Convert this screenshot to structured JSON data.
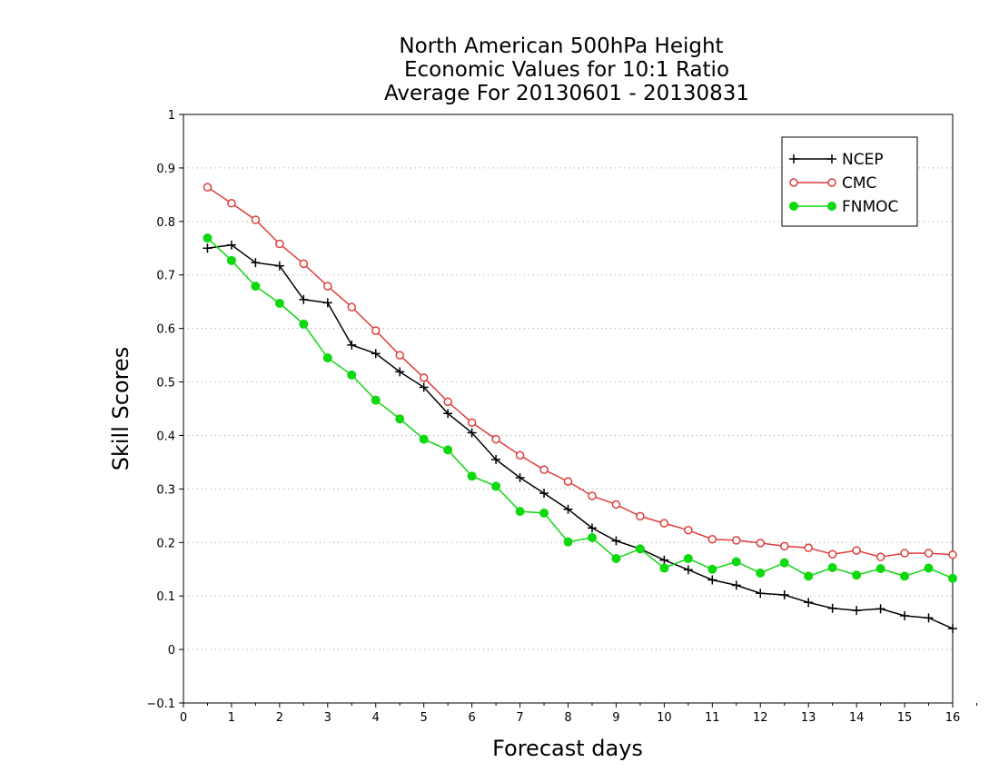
{
  "chart_data": {
    "type": "line",
    "title": [
      "North American 500hPa Height",
      "Economic Values for 10:1 Ratio",
      "Average For 20130601 - 20130831"
    ],
    "xlabel": "Forecast days",
    "ylabel": "Skill Scores",
    "xlim": [
      0,
      16
    ],
    "ylim": [
      -0.1,
      1
    ],
    "xticks": [
      "0",
      "1",
      "2",
      "3",
      "4",
      "5",
      "6",
      "7",
      "8",
      "9",
      "10",
      "11",
      "12",
      "13",
      "14",
      "15",
      "16"
    ],
    "yticks": [
      "−0.1",
      "0",
      "0.1",
      "0.2",
      "0.3",
      "0.4",
      "0.5",
      "0.6",
      "0.7",
      "0.8",
      "0.9",
      "1"
    ],
    "grid": true,
    "legend_position": "top-right",
    "x": [
      0.5,
      1,
      1.5,
      2,
      2.5,
      3,
      3.5,
      4,
      4.5,
      5,
      5.5,
      6,
      6.5,
      7,
      7.5,
      8,
      8.5,
      9,
      9.5,
      10,
      10.5,
      11,
      11.5,
      12,
      12.5,
      13,
      13.5,
      14,
      14.5,
      15,
      15.5,
      16
    ],
    "series": [
      {
        "name": "NCEP",
        "color": "#000000",
        "marker": "plus",
        "values": [
          0.75,
          0.756,
          0.723,
          0.717,
          0.654,
          0.648,
          0.569,
          0.553,
          0.519,
          0.49,
          0.441,
          0.405,
          0.355,
          0.321,
          0.292,
          0.262,
          0.227,
          0.203,
          0.188,
          0.167,
          0.149,
          0.13,
          0.12,
          0.105,
          0.102,
          0.088,
          0.077,
          0.073,
          0.076,
          0.063,
          0.059,
          0.039
        ]
      },
      {
        "name": "CMC",
        "color": "#e03c3c",
        "marker": "open-circle",
        "values": [
          0.864,
          0.834,
          0.803,
          0.758,
          0.721,
          0.679,
          0.64,
          0.596,
          0.55,
          0.508,
          0.463,
          0.424,
          0.393,
          0.363,
          0.336,
          0.314,
          0.287,
          0.271,
          0.249,
          0.236,
          0.223,
          0.206,
          0.204,
          0.199,
          0.193,
          0.19,
          0.178,
          0.185,
          0.173,
          0.18,
          0.18,
          0.177
        ]
      },
      {
        "name": "FNMOC",
        "color": "#0ed80e",
        "marker": "filled-circle",
        "values": [
          0.769,
          0.727,
          0.679,
          0.647,
          0.608,
          0.545,
          0.513,
          0.466,
          0.431,
          0.393,
          0.373,
          0.324,
          0.305,
          0.258,
          0.255,
          0.201,
          0.209,
          0.17,
          0.188,
          0.152,
          0.17,
          0.15,
          0.164,
          0.143,
          0.162,
          0.137,
          0.153,
          0.139,
          0.151,
          0.137,
          0.152,
          0.133
        ]
      }
    ]
  }
}
